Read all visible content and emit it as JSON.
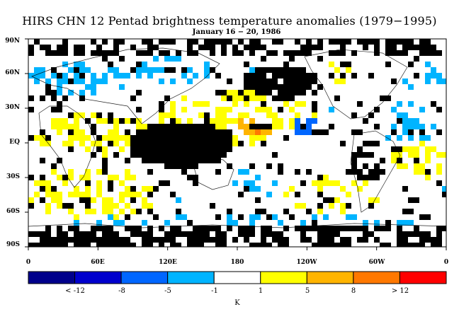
{
  "header": {
    "title": "HIRS CHN 12 Pentad brightness temperature anomalies (1979−1995)",
    "subtitle": "January 16 − 20, 1986"
  },
  "axes": {
    "lat_labels": [
      "90N",
      "60N",
      "30N",
      "EQ",
      "30S",
      "60S",
      "90S"
    ],
    "lon_labels": [
      "0",
      "60E",
      "120E",
      "180",
      "120W",
      "60W",
      "0"
    ]
  },
  "colorbar": {
    "colors": [
      "#00008b",
      "#0000cd",
      "#0066ff",
      "#00b4ff",
      "#ffffff",
      "#ffff00",
      "#ffb400",
      "#ff7800",
      "#ff0000"
    ],
    "labels": [
      "< -12",
      "-8",
      "-5",
      "-1",
      "1",
      "5",
      "8",
      "> 12"
    ],
    "unit": "K"
  },
  "map_colors": {
    "missing": "#000000",
    "neutral": "#ffffff",
    "cold_light": "#00b4ff",
    "cold_mid": "#0066ff",
    "warm_light": "#ffff00",
    "warm_mid": "#ffb400",
    "warm_strong": "#ff7800"
  }
}
